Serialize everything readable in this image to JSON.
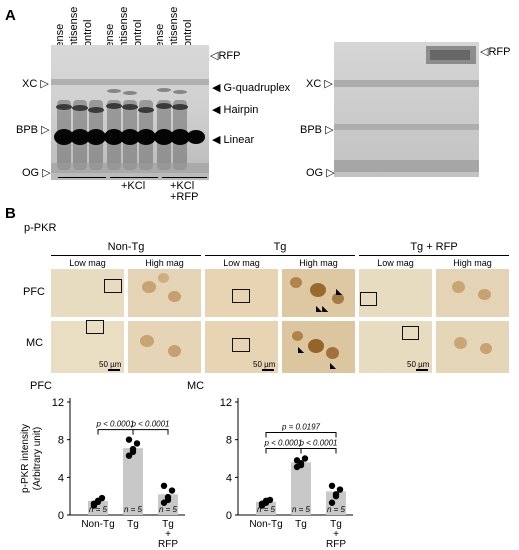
{
  "panelA": {
    "letter": "A",
    "lanes": [
      "Sense",
      "Antisense",
      "Control",
      "Sense",
      "Antisense",
      "Control",
      "Sense",
      "Antisense",
      "Control"
    ],
    "left_markers": {
      "xc": "XC",
      "bpb": "BPB",
      "og": "OG"
    },
    "right_markers": {
      "rfp": "RFP",
      "g4": "G-quadruplex",
      "hairpin": "Hairpin",
      "linear": "Linear"
    },
    "group_labels": {
      "kcl": "+KCl",
      "kcl_rfp_1": "+KCl",
      "kcl_rfp_2": "+RFP"
    },
    "gel2_markers": {
      "rfp": "RFP",
      "xc": "XC",
      "bpb": "BPB",
      "og": "OG"
    }
  },
  "panelB": {
    "letter": "B",
    "stain": "p-PKR",
    "groups": [
      "Non-Tg",
      "Tg",
      "Tg + RFP"
    ],
    "mags": [
      "Low mag",
      "High mag"
    ],
    "rows": [
      "PFC",
      "MC"
    ],
    "scale_bar": "50 µm"
  },
  "chart_data": [
    {
      "type": "bar",
      "title": "PFC",
      "categories": [
        "Non-Tg",
        "Tg",
        "Tg\nRFP"
      ],
      "category_lines": [
        [
          "Non-Tg"
        ],
        [
          "Tg"
        ],
        [
          "Tg",
          "+",
          "RFP"
        ]
      ],
      "values": [
        1.5,
        7.1,
        2.2
      ],
      "points": [
        [
          1.0,
          1.4,
          1.8,
          1.2,
          1.5
        ],
        [
          6.3,
          7.0,
          7.6,
          8.0,
          6.7
        ],
        [
          1.3,
          1.9,
          2.6,
          3.1,
          1.6
        ]
      ],
      "n_labels": [
        "n = 5",
        "n = 5",
        "n = 5"
      ],
      "ylabel": "p-PKR intensity\n(Arbitrary unit)",
      "ylabel_lines": [
        "p-PKR intensity",
        "(Arbitrary unit)"
      ],
      "ylim": [
        0,
        12
      ],
      "yticks": [
        0,
        4,
        8,
        12
      ],
      "significance": [
        {
          "from": 0,
          "to": 1,
          "label": "p < 0.0001",
          "level": 1
        },
        {
          "from": 1,
          "to": 2,
          "label": "p < 0.0001",
          "level": 1
        }
      ]
    },
    {
      "type": "bar",
      "title": "MC",
      "categories": [
        "Non-Tg",
        "Tg",
        "Tg\nRFP"
      ],
      "category_lines": [
        [
          "Non-Tg"
        ],
        [
          "Tg"
        ],
        [
          "Tg",
          "+",
          "RFP"
        ]
      ],
      "values": [
        1.4,
        5.6,
        2.5
      ],
      "points": [
        [
          1.0,
          1.3,
          1.6,
          1.2,
          1.5
        ],
        [
          5.1,
          5.5,
          6.0,
          5.8,
          5.3
        ],
        [
          1.3,
          2.0,
          2.7,
          3.1,
          2.2
        ]
      ],
      "n_labels": [
        "n = 5",
        "n = 5",
        "n = 5"
      ],
      "ylim": [
        0,
        12
      ],
      "yticks": [
        0,
        4,
        8,
        12
      ],
      "significance": [
        {
          "from": 0,
          "to": 1,
          "label": "p < 0.0001",
          "level": 1
        },
        {
          "from": 1,
          "to": 2,
          "label": "p < 0.0001",
          "level": 1
        },
        {
          "from": 0,
          "to": 2,
          "label": "p = 0.0197",
          "level": 2
        }
      ]
    }
  ]
}
